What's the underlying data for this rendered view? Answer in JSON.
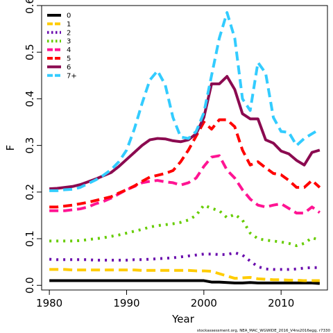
{
  "chart_data": {
    "type": "line",
    "xlabel": "Year",
    "ylabel": "F",
    "xlim": [
      1979,
      2016
    ],
    "ylim": [
      -0.01,
      0.6
    ],
    "xticks": [
      1980,
      1990,
      2000,
      2010
    ],
    "yticks": [
      0.0,
      0.1,
      0.2,
      0.3,
      0.4,
      0.5,
      0.6
    ],
    "ytick_labels": [
      "0.0",
      "0.1",
      "0.2",
      "0.3",
      "0.4",
      "0.5",
      "0.6"
    ],
    "grid": false,
    "legend_position": "top-left",
    "footnote": "stockassessment.org, NEA_MAC_WGWIDE_2016_V4ns2016egg, r7330",
    "years": [
      1980,
      1981,
      1982,
      1983,
      1984,
      1985,
      1986,
      1987,
      1988,
      1989,
      1990,
      1991,
      1992,
      1993,
      1994,
      1995,
      1996,
      1997,
      1998,
      1999,
      2000,
      2001,
      2002,
      2003,
      2004,
      2005,
      2006,
      2007,
      2008,
      2009,
      2010,
      2011,
      2012,
      2013,
      2014,
      2015
    ],
    "series": [
      {
        "name": "0",
        "color": "#000000",
        "dash": "solid",
        "values": [
          0.01,
          0.01,
          0.01,
          0.01,
          0.01,
          0.01,
          0.01,
          0.01,
          0.01,
          0.01,
          0.01,
          0.01,
          0.01,
          0.01,
          0.01,
          0.01,
          0.01,
          0.01,
          0.01,
          0.01,
          0.01,
          0.007,
          0.007,
          0.006,
          0.005,
          0.005,
          0.006,
          0.005,
          0.005,
          0.005,
          0.005,
          0.005,
          0.005,
          0.005,
          0.005,
          0.004
        ]
      },
      {
        "name": "1",
        "color": "#ffcc00",
        "dash": "dashed",
        "values": [
          0.034,
          0.034,
          0.034,
          0.033,
          0.033,
          0.033,
          0.033,
          0.033,
          0.033,
          0.033,
          0.033,
          0.033,
          0.032,
          0.032,
          0.032,
          0.032,
          0.032,
          0.032,
          0.032,
          0.031,
          0.031,
          0.03,
          0.025,
          0.02,
          0.015,
          0.016,
          0.017,
          0.014,
          0.013,
          0.012,
          0.012,
          0.011,
          0.011,
          0.01,
          0.01,
          0.01
        ]
      },
      {
        "name": "2",
        "color": "#6a0dad",
        "dash": "dotted",
        "values": [
          0.056,
          0.055,
          0.055,
          0.055,
          0.055,
          0.055,
          0.054,
          0.054,
          0.054,
          0.054,
          0.054,
          0.055,
          0.055,
          0.056,
          0.057,
          0.058,
          0.059,
          0.061,
          0.063,
          0.065,
          0.067,
          0.067,
          0.066,
          0.066,
          0.07,
          0.065,
          0.052,
          0.04,
          0.035,
          0.034,
          0.034,
          0.034,
          0.035,
          0.037,
          0.038,
          0.038
        ]
      },
      {
        "name": "3",
        "color": "#66cc00",
        "dash": "dotted",
        "values": [
          0.095,
          0.095,
          0.095,
          0.095,
          0.096,
          0.098,
          0.1,
          0.102,
          0.105,
          0.108,
          0.112,
          0.116,
          0.12,
          0.125,
          0.128,
          0.13,
          0.132,
          0.135,
          0.14,
          0.15,
          0.172,
          0.165,
          0.16,
          0.145,
          0.152,
          0.14,
          0.112,
          0.1,
          0.097,
          0.095,
          0.093,
          0.09,
          0.085,
          0.09,
          0.102,
          0.097
        ]
      },
      {
        "name": "4",
        "color": "#ff1493",
        "dash": "dashed",
        "values": [
          0.16,
          0.16,
          0.16,
          0.162,
          0.164,
          0.168,
          0.175,
          0.18,
          0.187,
          0.196,
          0.205,
          0.212,
          0.22,
          0.223,
          0.225,
          0.222,
          0.22,
          0.215,
          0.22,
          0.23,
          0.255,
          0.275,
          0.278,
          0.247,
          0.23,
          0.205,
          0.185,
          0.172,
          0.168,
          0.172,
          0.175,
          0.165,
          0.155,
          0.155,
          0.168,
          0.156
        ]
      },
      {
        "name": "5",
        "color": "#ff0000",
        "dash": "dashed",
        "values": [
          0.168,
          0.168,
          0.17,
          0.172,
          0.175,
          0.178,
          0.182,
          0.186,
          0.19,
          0.198,
          0.205,
          0.213,
          0.223,
          0.232,
          0.236,
          0.24,
          0.246,
          0.265,
          0.29,
          0.32,
          0.35,
          0.335,
          0.355,
          0.355,
          0.34,
          0.29,
          0.258,
          0.265,
          0.252,
          0.24,
          0.237,
          0.225,
          0.21,
          0.21,
          0.225,
          0.21
        ]
      },
      {
        "name": "6",
        "color": "#8b0a50",
        "dash": "solid",
        "values": [
          0.207,
          0.208,
          0.21,
          0.212,
          0.216,
          0.222,
          0.228,
          0.235,
          0.242,
          0.255,
          0.27,
          0.285,
          0.3,
          0.312,
          0.315,
          0.314,
          0.31,
          0.308,
          0.312,
          0.325,
          0.36,
          0.432,
          0.432,
          0.448,
          0.42,
          0.368,
          0.357,
          0.357,
          0.312,
          0.305,
          0.288,
          0.282,
          0.268,
          0.258,
          0.285,
          0.29
        ]
      },
      {
        "name": "7+",
        "color": "#33ccff",
        "dash": "dashed",
        "values": [
          0.203,
          0.203,
          0.205,
          0.206,
          0.21,
          0.218,
          0.226,
          0.236,
          0.248,
          0.265,
          0.29,
          0.335,
          0.39,
          0.44,
          0.46,
          0.43,
          0.36,
          0.318,
          0.315,
          0.33,
          0.37,
          0.45,
          0.53,
          0.585,
          0.53,
          0.4,
          0.375,
          0.478,
          0.455,
          0.36,
          0.33,
          0.328,
          0.3,
          0.315,
          0.325,
          0.335
        ]
      }
    ]
  }
}
